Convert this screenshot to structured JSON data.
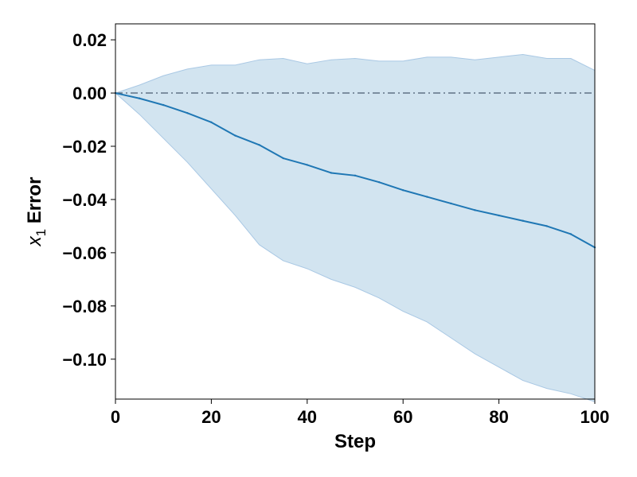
{
  "chart_data": {
    "type": "line",
    "title": "",
    "xlabel": "Step",
    "ylabel_var": "x",
    "ylabel_sub": "1",
    "ylabel_rest": " Error",
    "xlim": [
      0,
      100
    ],
    "ylim": [
      -0.115,
      0.026
    ],
    "x_ticks": [
      0,
      20,
      40,
      60,
      80,
      100
    ],
    "y_ticks": [
      0.02,
      0.0,
      -0.02,
      -0.04,
      -0.06,
      -0.08,
      -0.1
    ],
    "grid": false,
    "legend": "none",
    "reference_line": {
      "y": 0.0,
      "style": "dash-dot"
    },
    "series": [
      {
        "x": [
          0,
          5,
          10,
          15,
          20,
          25,
          30,
          35,
          40,
          45,
          50,
          55,
          60,
          65,
          70,
          75,
          80,
          85,
          90,
          95,
          100
        ],
        "y": [
          0.0,
          -0.002,
          -0.0045,
          -0.0075,
          -0.011,
          -0.016,
          -0.0195,
          -0.0245,
          -0.027,
          -0.03,
          -0.031,
          -0.0335,
          -0.0365,
          -0.039,
          -0.0415,
          -0.044,
          -0.046,
          -0.048,
          -0.05,
          -0.053,
          -0.058
        ],
        "band_upper": [
          0.0,
          0.003,
          0.0065,
          0.009,
          0.0105,
          0.0105,
          0.0125,
          0.013,
          0.011,
          0.0125,
          0.013,
          0.012,
          0.012,
          0.0135,
          0.0135,
          0.0125,
          0.0135,
          0.0145,
          0.013,
          0.013,
          0.0085
        ],
        "band_lower": [
          0.0,
          -0.008,
          -0.017,
          -0.026,
          -0.036,
          -0.046,
          -0.057,
          -0.063,
          -0.066,
          -0.07,
          -0.073,
          -0.077,
          -0.082,
          -0.086,
          -0.092,
          -0.098,
          -0.103,
          -0.108,
          -0.111,
          -0.113,
          -0.116
        ]
      }
    ],
    "colors": {
      "line": "#1f77b4",
      "band_fill": "#1f77b4",
      "band_edge": "#a9c8e4",
      "reference": "#4a5a70"
    }
  }
}
